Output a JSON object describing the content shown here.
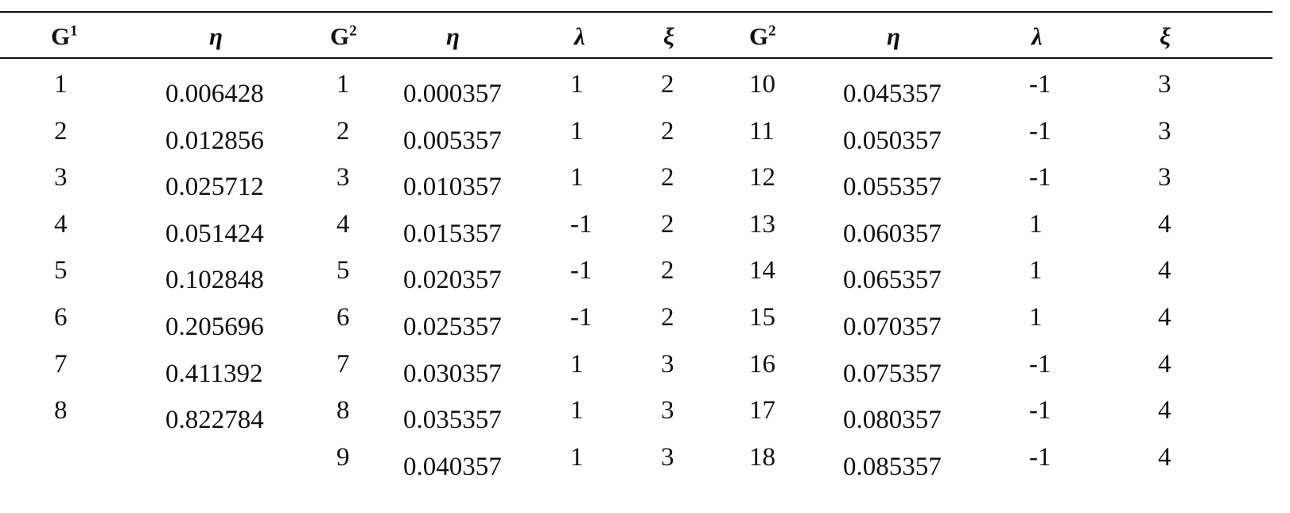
{
  "table": {
    "headers": [
      "G",
      "η",
      "G",
      "η",
      "λ",
      "ξ",
      "G",
      "η",
      "λ",
      "ξ"
    ],
    "header_sups": [
      "1",
      "",
      "2",
      "",
      "",
      "",
      "2",
      "",
      "",
      ""
    ],
    "rows": [
      [
        "1",
        "0.006428",
        "1",
        "0.000357",
        "1",
        "2",
        "10",
        "0.045357",
        "-1",
        "3"
      ],
      [
        "2",
        "0.012856",
        "2",
        "0.005357",
        "1",
        "2",
        "11",
        "0.050357",
        "-1",
        "3"
      ],
      [
        "3",
        "0.025712",
        "3",
        "0.010357",
        "1",
        "2",
        "12",
        "0.055357",
        "-1",
        "3"
      ],
      [
        "4",
        "0.051424",
        "4",
        "0.015357",
        "-1",
        "2",
        "13",
        "0.060357",
        "1",
        "4"
      ],
      [
        "5",
        "0.102848",
        "5",
        "0.020357",
        "-1",
        "2",
        "14",
        "0.065357",
        "1",
        "4"
      ],
      [
        "6",
        "0.205696",
        "6",
        "0.025357",
        "-1",
        "2",
        "15",
        "0.070357",
        "1",
        "4"
      ],
      [
        "7",
        "0.411392",
        "7",
        "0.030357",
        "1",
        "3",
        "16",
        "0.075357",
        "-1",
        "4"
      ],
      [
        "8",
        "0.822784",
        "8",
        "0.035357",
        "1",
        "3",
        "17",
        "0.080357",
        "-1",
        "4"
      ],
      [
        "",
        "",
        "9",
        "0.040357",
        "1",
        "3",
        "18",
        "0.085357",
        "-1",
        "4"
      ]
    ]
  }
}
